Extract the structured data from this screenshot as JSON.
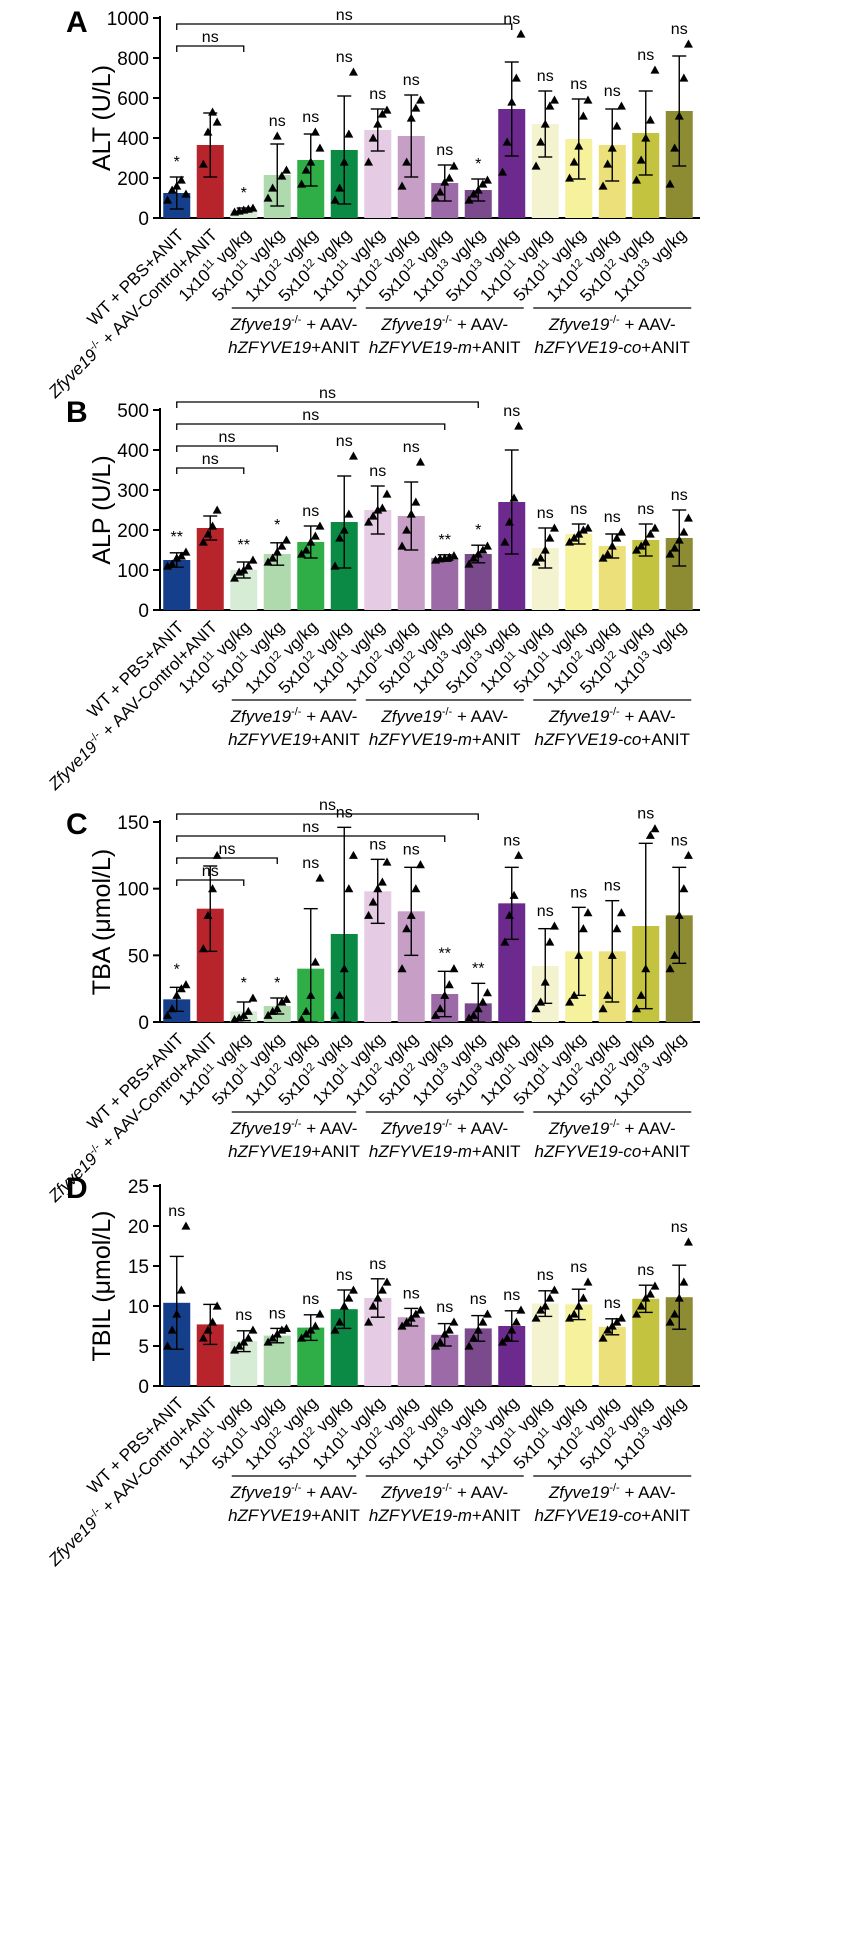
{
  "chart_data": [
    {
      "type": "bar",
      "panel": "A",
      "ylabel": "ALT (U/L)",
      "ylim": [
        0,
        1000
      ],
      "yticks": [
        0,
        200,
        400,
        600,
        800,
        1000
      ],
      "categories": [
        "WT + PBS+ANIT",
        "Zfyve19-/- + AAV-Control+ANIT",
        "1x10^11 vg/kg",
        "5x10^11 vg/kg",
        "1x10^12 vg/kg",
        "5x10^12 vg/kg",
        "1x10^11 vg/kg",
        "1x10^12 vg/kg",
        "5x10^12 vg/kg",
        "1x10^13 vg/kg",
        "5x10^13 vg/kg",
        "1x10^11 vg/kg",
        "5x10^11 vg/kg",
        "1x10^12 vg/kg",
        "5x10^12 vg/kg",
        "1x10^13 vg/kg"
      ],
      "values": [
        125,
        365,
        40,
        215,
        290,
        340,
        440,
        410,
        175,
        140,
        545,
        470,
        395,
        365,
        425,
        535
      ],
      "errors": [
        80,
        160,
        10,
        155,
        130,
        270,
        105,
        205,
        90,
        55,
        235,
        165,
        200,
        180,
        210,
        275
      ],
      "points": [
        [
          90,
          140,
          160,
          190,
          120
        ],
        [
          270,
          430,
          530,
          480
        ],
        [
          30,
          35,
          40,
          45,
          50
        ],
        [
          100,
          150,
          410,
          210,
          240
        ],
        [
          170,
          240,
          280,
          430,
          350
        ],
        [
          90,
          150,
          280,
          420,
          730
        ],
        [
          280,
          400,
          470,
          520,
          540
        ],
        [
          160,
          280,
          500,
          550,
          590
        ],
        [
          100,
          130,
          180,
          200,
          260
        ],
        [
          90,
          120,
          140,
          170,
          190
        ],
        [
          230,
          380,
          580,
          700,
          920
        ],
        [
          260,
          380,
          470,
          560,
          590
        ],
        [
          200,
          280,
          360,
          510,
          590
        ],
        [
          160,
          270,
          350,
          460,
          560
        ],
        [
          190,
          290,
          400,
          490,
          740
        ],
        [
          170,
          350,
          510,
          700,
          870
        ]
      ],
      "significance": [
        "*",
        "",
        "*",
        "ns",
        "ns",
        "ns",
        "ns",
        "ns",
        "ns",
        "*",
        "ns",
        "ns",
        "ns",
        "ns",
        "ns",
        "ns"
      ],
      "brackets": [
        {
          "from": 0,
          "to": 2,
          "label": "ns"
        },
        {
          "from": 0,
          "to": 10,
          "label": "ns"
        }
      ]
    },
    {
      "type": "bar",
      "panel": "B",
      "ylabel": "ALP (U/L)",
      "ylim": [
        0,
        500
      ],
      "yticks": [
        0,
        100,
        200,
        300,
        400,
        500
      ],
      "categories": [
        "WT + PBS+ANIT",
        "Zfyve19-/- + AAV-Control+ANIT",
        "1x10^11 vg/kg",
        "5x10^11 vg/kg",
        "1x10^12 vg/kg",
        "5x10^12 vg/kg",
        "1x10^11 vg/kg",
        "1x10^12 vg/kg",
        "5x10^12 vg/kg",
        "1x10^13 vg/kg",
        "5x10^13 vg/kg",
        "1x10^11 vg/kg",
        "5x10^11 vg/kg",
        "1x10^12 vg/kg",
        "5x10^12 vg/kg",
        "1x10^13 vg/kg"
      ],
      "values": [
        125,
        205,
        100,
        140,
        170,
        220,
        250,
        235,
        130,
        140,
        270,
        155,
        190,
        160,
        175,
        180
      ],
      "errors": [
        18,
        30,
        20,
        28,
        40,
        115,
        60,
        85,
        8,
        22,
        130,
        50,
        25,
        30,
        40,
        70
      ],
      "points": [
        [
          110,
          115,
          130,
          135,
          145
        ],
        [
          170,
          190,
          210,
          250
        ],
        [
          80,
          95,
          100,
          110,
          125
        ],
        [
          120,
          130,
          145,
          160,
          175
        ],
        [
          140,
          150,
          170,
          185,
          210
        ],
        [
          110,
          180,
          200,
          240,
          385
        ],
        [
          220,
          235,
          250,
          255,
          290
        ],
        [
          160,
          200,
          240,
          270,
          370
        ],
        [
          125,
          128,
          130,
          132,
          136
        ],
        [
          115,
          130,
          140,
          150,
          160
        ],
        [
          170,
          220,
          280,
          460
        ],
        [
          120,
          130,
          150,
          180,
          205
        ],
        [
          170,
          180,
          190,
          200,
          205
        ],
        [
          130,
          140,
          160,
          180,
          195
        ],
        [
          150,
          160,
          170,
          190,
          205
        ],
        [
          140,
          155,
          175,
          195,
          230
        ]
      ],
      "significance": [
        "**",
        "",
        "**",
        "*",
        "ns",
        "ns",
        "ns",
        "ns",
        "**",
        "*",
        "ns",
        "ns",
        "ns",
        "ns",
        "ns",
        "ns"
      ],
      "brackets": [
        {
          "from": 0,
          "to": 2,
          "label": "ns"
        },
        {
          "from": 0,
          "to": 3,
          "label": "ns"
        },
        {
          "from": 0,
          "to": 8,
          "label": "ns"
        },
        {
          "from": 0,
          "to": 9,
          "label": "ns"
        }
      ]
    },
    {
      "type": "bar",
      "panel": "C",
      "ylabel": "TBA (μmol/L)",
      "ylim": [
        0,
        150
      ],
      "yticks": [
        0,
        50,
        100,
        150
      ],
      "categories": [
        "WT + PBS+ANIT",
        "Zfyve19-/- + AAV-Control+ANIT",
        "1x10^11 vg/kg",
        "5x10^11 vg/kg",
        "1x10^12 vg/kg",
        "5x10^12 vg/kg",
        "1x10^11 vg/kg",
        "1x10^12 vg/kg",
        "5x10^12 vg/kg",
        "1x10^13 vg/kg",
        "5x10^13 vg/kg",
        "1x10^11 vg/kg",
        "5x10^11 vg/kg",
        "1x10^12 vg/kg",
        "5x10^12 vg/kg",
        "1x10^13 vg/kg"
      ],
      "values": [
        17,
        85,
        8,
        12,
        40,
        66,
        98,
        83,
        21,
        14,
        89,
        42,
        53,
        53,
        72,
        80
      ],
      "errors": [
        9,
        32,
        7,
        6,
        45,
        80,
        24,
        33,
        17,
        15,
        27,
        28,
        33,
        38,
        62,
        36
      ],
      "points": [
        [
          5,
          10,
          20,
          25,
          28
        ],
        [
          55,
          80,
          100,
          125
        ],
        [
          2,
          3,
          5,
          8,
          18
        ],
        [
          5,
          8,
          10,
          15,
          17
        ],
        [
          2,
          8,
          20,
          45,
          108
        ],
        [
          5,
          20,
          40,
          100,
          125
        ],
        [
          80,
          90,
          100,
          105,
          120
        ],
        [
          40,
          70,
          80,
          100,
          118
        ],
        [
          5,
          10,
          20,
          28,
          40
        ],
        [
          3,
          5,
          10,
          15,
          22
        ],
        [
          60,
          80,
          95,
          125
        ],
        [
          10,
          15,
          30,
          60,
          72
        ],
        [
          15,
          20,
          50,
          70,
          82
        ],
        [
          10,
          20,
          50,
          70,
          82
        ],
        [
          10,
          20,
          40,
          140,
          145
        ],
        [
          40,
          50,
          80,
          100,
          125
        ]
      ],
      "significance": [
        "*",
        "",
        "*",
        "*",
        "ns",
        "ns",
        "ns",
        "ns",
        "**",
        "**",
        "ns",
        "ns",
        "ns",
        "ns",
        "ns",
        "ns"
      ],
      "brackets": [
        {
          "from": 0,
          "to": 2,
          "label": "ns"
        },
        {
          "from": 0,
          "to": 3,
          "label": "ns"
        },
        {
          "from": 0,
          "to": 8,
          "label": "ns"
        },
        {
          "from": 0,
          "to": 9,
          "label": "ns"
        }
      ]
    },
    {
      "type": "bar",
      "panel": "D",
      "ylabel": "TBIL (μmol/L)",
      "ylim": [
        0,
        25
      ],
      "yticks": [
        0,
        5,
        10,
        15,
        20,
        25
      ],
      "categories": [
        "WT + PBS+ANIT",
        "Zfyve19-/- + AAV-Control+ANIT",
        "1x10^11 vg/kg",
        "5x10^11 vg/kg",
        "1x10^12 vg/kg",
        "5x10^12 vg/kg",
        "1x10^11 vg/kg",
        "1x10^12 vg/kg",
        "5x10^12 vg/kg",
        "1x10^13 vg/kg",
        "5x10^13 vg/kg",
        "1x10^11 vg/kg",
        "5x10^11 vg/kg",
        "1x10^12 vg/kg",
        "5x10^12 vg/kg",
        "1x10^13 vg/kg"
      ],
      "values": [
        10.4,
        7.7,
        5.6,
        6.3,
        7.3,
        9.6,
        11.0,
        8.6,
        6.4,
        7.2,
        7.5,
        10.3,
        10.2,
        7.4,
        10.9,
        11.1
      ],
      "errors": [
        5.8,
        2.5,
        1.3,
        0.9,
        1.6,
        2.4,
        2.4,
        1.1,
        1.4,
        1.6,
        1.9,
        1.6,
        1.9,
        1.0,
        1.7,
        4.0
      ],
      "points": [
        [
          5,
          7,
          9,
          12,
          20
        ],
        [
          6,
          7,
          8,
          10
        ],
        [
          4.5,
          5,
          5.5,
          6,
          7
        ],
        [
          5.5,
          6,
          6.5,
          7,
          7.2
        ],
        [
          6,
          6.5,
          7,
          7.5,
          9
        ],
        [
          7,
          8,
          10,
          11,
          12
        ],
        [
          8,
          10,
          11,
          12,
          13
        ],
        [
          7.5,
          8,
          8.5,
          9,
          9.5
        ],
        [
          5,
          5.5,
          6.5,
          7,
          8
        ],
        [
          5,
          6,
          7,
          8,
          9
        ],
        [
          5.5,
          6,
          7,
          8,
          9.5
        ],
        [
          8.5,
          9.5,
          10,
          11,
          12
        ],
        [
          8.5,
          9,
          10,
          11,
          13
        ],
        [
          6,
          7,
          7.5,
          8,
          8.5
        ],
        [
          9,
          10,
          11,
          11.5,
          12.5
        ],
        [
          8,
          9,
          11,
          13,
          18
        ]
      ],
      "significance": [
        "ns",
        "",
        "ns",
        "ns",
        "ns",
        "ns",
        "ns",
        "ns",
        "ns",
        "ns",
        "ns",
        "ns",
        "ns",
        "ns",
        "ns",
        "ns"
      ],
      "brackets": []
    }
  ],
  "colors": [
    "#153f8a",
    "#b8242c",
    "#d7ecd5",
    "#aedaae",
    "#2fae48",
    "#0b8a45",
    "#e5cbe3",
    "#c69ec6",
    "#9c6aa6",
    "#7a4a8c",
    "#6d2a8e",
    "#f3f4cf",
    "#f6f19c",
    "#ebe07a",
    "#c3c340",
    "#8e8c33"
  ],
  "x_labels": {
    "wt": "WT + PBS+ANIT",
    "ctrl_gene": "Zfyve19",
    "ctrl_sup": "-/-",
    "ctrl_rest": " + AAV-Control+ANIT",
    "dose_prefix": [
      "1x10",
      "5x10",
      "1x10",
      "5x10",
      "1x10",
      "1x10",
      "5x10",
      "1x10",
      "5x10",
      "1x10",
      "5x10",
      "1x10",
      "5x10",
      "1x10"
    ],
    "dose_exp": [
      "11",
      "11",
      "12",
      "12",
      "11",
      "12",
      "12",
      "13",
      "13",
      "11",
      "11",
      "12",
      "12",
      "13"
    ],
    "dose_unit": " vg/kg"
  },
  "groups": [
    {
      "line1_gene": "Zfyve19",
      "line1_sup": "-/-",
      "line1_rest": " + AAV-",
      "line2_gene": "hZFYVE19",
      "line2_rest": "+ANIT"
    },
    {
      "line1_gene": "Zfyve19",
      "line1_sup": "-/-",
      "line1_rest": " + AAV-",
      "line2_gene": "hZFYVE19-m",
      "line2_rest": "+ANIT"
    },
    {
      "line1_gene": "Zfyve19",
      "line1_sup": "-/-",
      "line1_rest": " + AAV-",
      "line2_gene": "hZFYVE19-co",
      "line2_rest": "+ANIT"
    }
  ]
}
